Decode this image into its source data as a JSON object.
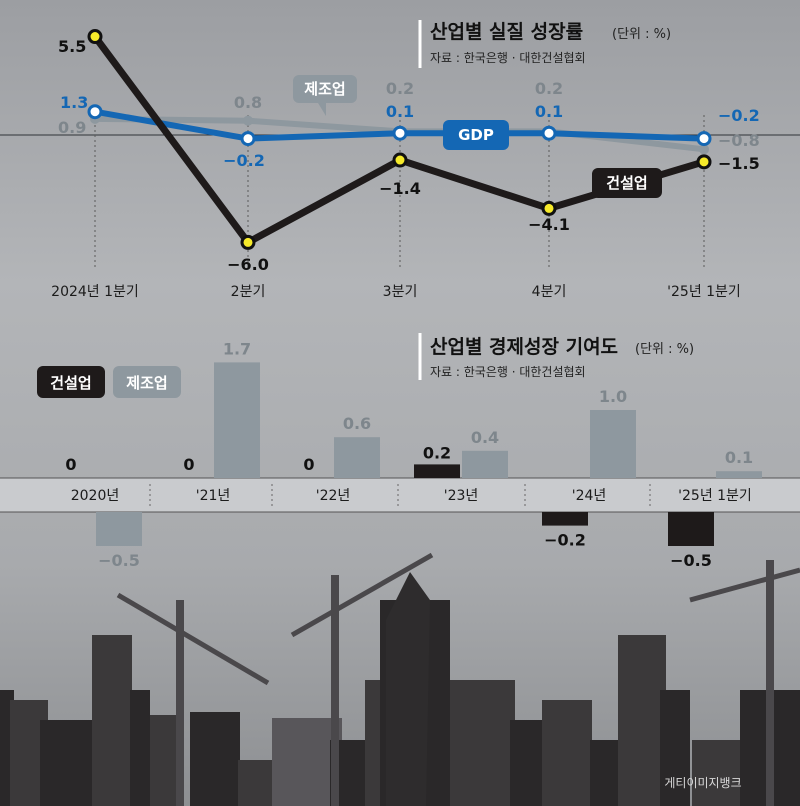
{
  "colors": {
    "construction": "#1e1a1a",
    "manufacturing": "#8e989f",
    "gdp": "#1467b4",
    "marker_fill": "#f6ea2a"
  },
  "credit": "게티이미지뱅크",
  "chart_data": [
    {
      "type": "line",
      "title": "산업별 실질 성장률",
      "unit": "(단위 : %)",
      "source": "자료 : 한국은행 · 대한건설협회",
      "categories": [
        "2024년 1분기",
        "2분기",
        "3분기",
        "4분기",
        "'25년 1분기"
      ],
      "series": [
        {
          "name": "건설업",
          "values": [
            5.5,
            -6.0,
            -1.4,
            -4.1,
            -1.5
          ],
          "labels": [
            "5.5",
            "−6.0",
            "−1.4",
            "−4.1",
            "−1.5"
          ]
        },
        {
          "name": "제조업",
          "values": [
            0.9,
            0.8,
            0.2,
            0.2,
            -0.8
          ],
          "labels": [
            "0.9",
            "0.8",
            "0.2",
            "0.2",
            "−0.8"
          ]
        },
        {
          "name": "GDP",
          "values": [
            1.3,
            -0.2,
            0.1,
            0.1,
            -0.2
          ],
          "labels": [
            "1.3",
            "−0.2",
            "0.1",
            "0.1",
            "−0.2"
          ]
        }
      ],
      "ylim": [
        -7,
        6.5
      ]
    },
    {
      "type": "bar",
      "title": "산업별 경제성장 기여도",
      "unit": "(단위 : %)",
      "source": "자료 : 한국은행 · 대한건설협회",
      "categories": [
        "2020년",
        "'21년",
        "'22년",
        "'23년",
        "'24년",
        "'25년 1분기"
      ],
      "series": [
        {
          "name": "건설업",
          "values": [
            0,
            0,
            0,
            0.2,
            -0.2,
            -0.5
          ],
          "labels": [
            "0",
            "0",
            "0",
            "0.2",
            "−0.2",
            "−0.5"
          ]
        },
        {
          "name": "제조업",
          "values": [
            -0.5,
            1.7,
            0.6,
            0.4,
            1.0,
            0.1
          ],
          "labels": [
            "−0.5",
            "1.7",
            "0.6",
            "0.4",
            "1.0",
            "0.1"
          ]
        }
      ]
    }
  ]
}
